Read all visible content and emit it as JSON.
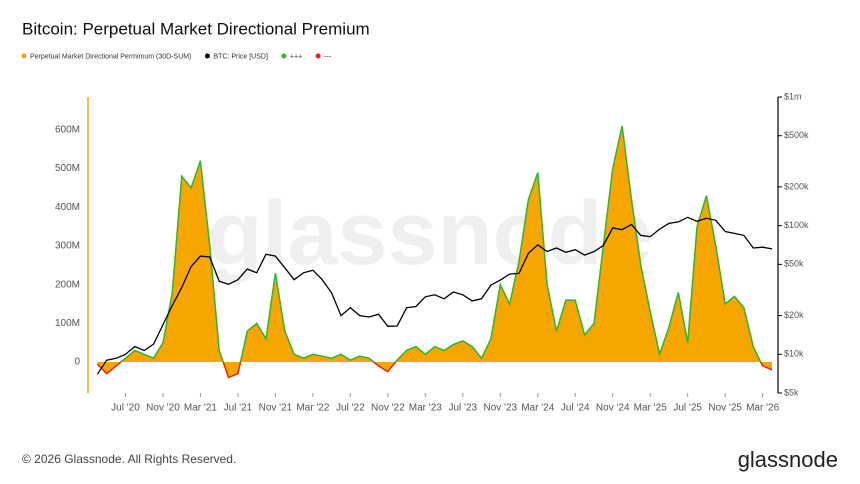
{
  "chart_data": {
    "type": "area-line",
    "title": "Bitcoin: Perpetual Market Directional Premium",
    "watermark": "glassnode",
    "footer": "© 2026 Glassnode. All Rights Reserved.",
    "logo": "glassnode",
    "grid": false,
    "y2_log": true,
    "x": [
      "2020-04",
      "2020-05",
      "2020-06",
      "2020-07",
      "2020-08",
      "2020-09",
      "2020-10",
      "2020-11",
      "2020-12",
      "2021-01",
      "2021-02",
      "2021-03",
      "2021-04",
      "2021-05",
      "2021-06",
      "2021-07",
      "2021-08",
      "2021-09",
      "2021-10",
      "2021-11",
      "2021-12",
      "2022-01",
      "2022-02",
      "2022-03",
      "2022-04",
      "2022-05",
      "2022-06",
      "2022-07",
      "2022-08",
      "2022-09",
      "2022-10",
      "2022-11",
      "2022-12",
      "2023-01",
      "2023-02",
      "2023-03",
      "2023-04",
      "2023-05",
      "2023-06",
      "2023-07",
      "2023-08",
      "2023-09",
      "2023-10",
      "2023-11",
      "2023-12",
      "2024-01",
      "2024-02",
      "2024-03",
      "2024-04",
      "2024-05",
      "2024-06",
      "2024-07",
      "2024-08",
      "2024-09",
      "2024-10",
      "2024-11",
      "2024-12",
      "2025-01",
      "2025-02",
      "2025-03",
      "2025-04",
      "2025-05",
      "2025-06",
      "2025-07",
      "2025-08",
      "2025-09",
      "2025-10",
      "2025-11",
      "2025-12",
      "2026-01",
      "2026-02",
      "2026-03",
      "2026-04"
    ],
    "xlim": [
      "2020-03",
      "2026-04"
    ],
    "xticks": [
      {
        "value": "2020-07",
        "label": "Jul '20"
      },
      {
        "value": "2020-11",
        "label": "Nov '20"
      },
      {
        "value": "2021-03",
        "label": "Mar '21"
      },
      {
        "value": "2021-07",
        "label": "Jul '21"
      },
      {
        "value": "2021-11",
        "label": "Nov '21"
      },
      {
        "value": "2022-03",
        "label": "Mar '22"
      },
      {
        "value": "2022-07",
        "label": "Jul '22"
      },
      {
        "value": "2022-11",
        "label": "Nov '22"
      },
      {
        "value": "2023-03",
        "label": "Mar '23"
      },
      {
        "value": "2023-07",
        "label": "Jul '23"
      },
      {
        "value": "2023-11",
        "label": "Nov '23"
      },
      {
        "value": "2024-03",
        "label": "Mar '24"
      },
      {
        "value": "2024-07",
        "label": "Jul '24"
      },
      {
        "value": "2024-11",
        "label": "Nov '24"
      },
      {
        "value": "2025-03",
        "label": "Mar '25"
      },
      {
        "value": "2025-07",
        "label": "Jul '25"
      },
      {
        "value": "2025-11",
        "label": "Nov '25"
      },
      {
        "value": "2026-03",
        "label": "Mar '26"
      }
    ],
    "ylim": [
      -80000000,
      685000000
    ],
    "yticks": [
      0,
      {
        "value": 100000000,
        "label": "100M"
      },
      {
        "value": 200000000,
        "label": "200M"
      },
      {
        "value": 300000000,
        "label": "300M"
      },
      {
        "value": 400000000,
        "label": "400M"
      },
      {
        "value": 500000000,
        "label": "500M"
      },
      {
        "value": 600000000,
        "label": "600M"
      }
    ],
    "y2lim": [
      5000,
      1000000
    ],
    "y2ticks": [
      {
        "value": 5000,
        "label": "$5k"
      },
      {
        "value": 10000,
        "label": "$10k"
      },
      {
        "value": 20000,
        "label": "$20k"
      },
      {
        "value": 50000,
        "label": "$50k"
      },
      {
        "value": 100000,
        "label": "$100k"
      },
      {
        "value": 200000,
        "label": "$200k"
      },
      {
        "value": 500000,
        "label": "$500k"
      },
      {
        "value": 1000000,
        "label": "$1m"
      }
    ],
    "series": [
      {
        "name": "Perpetual Market Directional Permimum (30D-SUM)",
        "color": "#f7a600",
        "axis": "y",
        "values": [
          -5000000,
          -30000000,
          -10000000,
          10000000,
          30000000,
          20000000,
          10000000,
          50000000,
          180000000,
          480000000,
          450000000,
          520000000,
          300000000,
          30000000,
          -40000000,
          -30000000,
          80000000,
          100000000,
          60000000,
          230000000,
          80000000,
          20000000,
          10000000,
          20000000,
          15000000,
          10000000,
          20000000,
          5000000,
          15000000,
          10000000,
          -10000000,
          -25000000,
          5000000,
          30000000,
          40000000,
          20000000,
          40000000,
          30000000,
          45000000,
          55000000,
          40000000,
          10000000,
          60000000,
          200000000,
          150000000,
          260000000,
          420000000,
          490000000,
          200000000,
          80000000,
          160000000,
          160000000,
          70000000,
          100000000,
          300000000,
          500000000,
          610000000,
          420000000,
          250000000,
          130000000,
          20000000,
          90000000,
          180000000,
          50000000,
          350000000,
          430000000,
          300000000,
          150000000,
          170000000,
          140000000,
          40000000,
          -10000000,
          -20000000
        ]
      },
      {
        "name": "BTC: Price [USD]",
        "color": "#000000",
        "axis": "y2",
        "values": [
          7000,
          9000,
          9300,
          10000,
          11500,
          10700,
          12000,
          17000,
          24000,
          33000,
          48000,
          58000,
          57000,
          37000,
          35000,
          38000,
          46000,
          43000,
          60000,
          58000,
          47000,
          38000,
          43000,
          45000,
          38000,
          30000,
          20000,
          23000,
          20000,
          19500,
          20500,
          16500,
          16600,
          23000,
          23500,
          28000,
          29000,
          27000,
          30500,
          29000,
          26000,
          27000,
          34500,
          37700,
          42000,
          42500,
          61000,
          71000,
          63000,
          67000,
          62000,
          65000,
          59000,
          63000,
          70000,
          96000,
          93000,
          102000,
          84000,
          82000,
          94000,
          104000,
          107000,
          116000,
          108000,
          114000,
          110000,
          90000,
          87000,
          84000,
          67000,
          68000,
          66000
        ]
      }
    ],
    "outline": [
      {
        "name": "+++",
        "color": "#2fb52f"
      },
      {
        "name": "---",
        "color": "#e4251b"
      }
    ]
  }
}
